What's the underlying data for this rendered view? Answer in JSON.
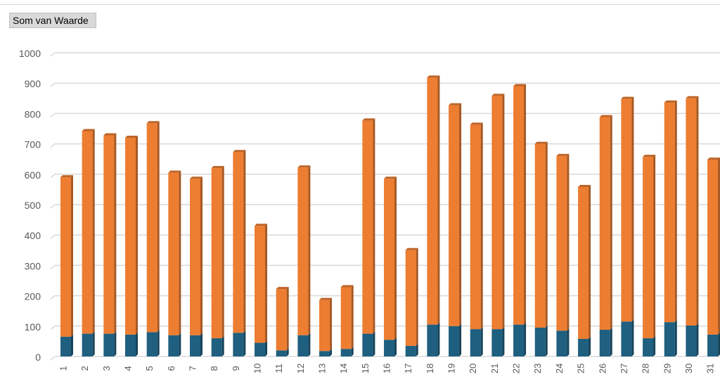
{
  "field_button": {
    "label": "Som van Waarde"
  },
  "colors": {
    "lower": "#1f5f7f",
    "upper": "#ed7d31",
    "grid": "#d9d9d9"
  },
  "chart_data": {
    "type": "bar",
    "stacked": true,
    "categories": [
      "1",
      "2",
      "3",
      "4",
      "5",
      "6",
      "7",
      "8",
      "9",
      "10",
      "11",
      "12",
      "13",
      "14",
      "15",
      "16",
      "17",
      "18",
      "19",
      "20",
      "21",
      "22",
      "23",
      "24",
      "25",
      "26",
      "27",
      "28",
      "29",
      "30",
      "31"
    ],
    "series": [
      {
        "values": [
          65,
          75,
          75,
          72,
          80,
          70,
          70,
          60,
          78,
          45,
          20,
          70,
          18,
          25,
          75,
          55,
          35,
          105,
          100,
          90,
          90,
          105,
          95,
          85,
          58,
          88,
          115,
          60,
          113,
          102,
          72
        ]
      },
      {
        "values": [
          525,
          667,
          653,
          648,
          688,
          535,
          515,
          560,
          595,
          385,
          202,
          552,
          168,
          203,
          702,
          530,
          315,
          813,
          727,
          673,
          768,
          785,
          605,
          575,
          500,
          700,
          733,
          597,
          723,
          748,
          576
        ]
      }
    ],
    "totals": [
      590,
      742,
      728,
      720,
      768,
      605,
      585,
      620,
      673,
      430,
      222,
      622,
      186,
      228,
      777,
      585,
      350,
      918,
      827,
      763,
      858,
      890,
      700,
      660,
      558,
      788,
      848,
      657,
      836,
      850,
      648
    ],
    "ylim": [
      0,
      1000
    ],
    "yticks": [
      "0",
      "100",
      "200",
      "300",
      "400",
      "500",
      "600",
      "700",
      "800",
      "900",
      "1000"
    ],
    "grid": true,
    "legend": "none"
  }
}
